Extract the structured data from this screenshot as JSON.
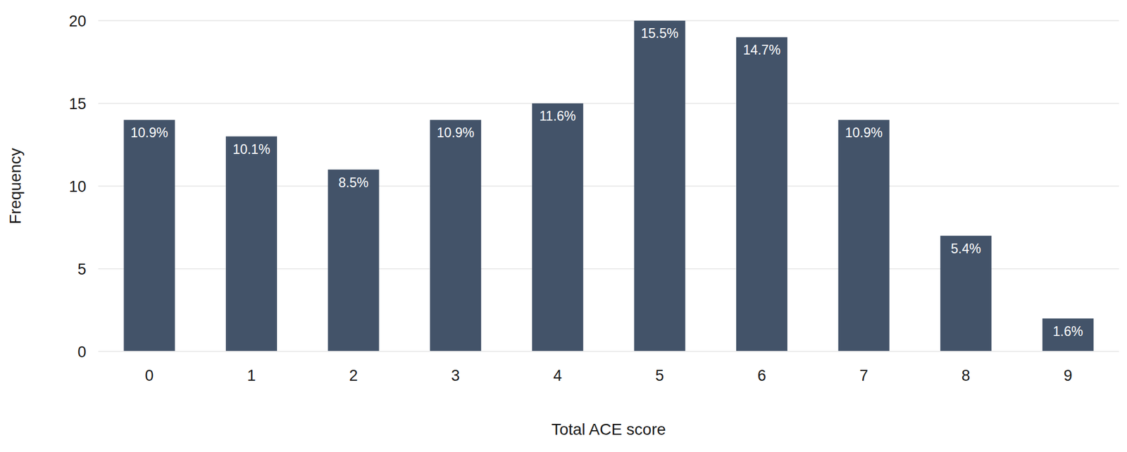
{
  "chart_data": {
    "type": "bar",
    "x_label": "Total ACE score",
    "y_label": "Frequency",
    "categories": [
      "0",
      "1",
      "2",
      "3",
      "4",
      "5",
      "6",
      "7",
      "8",
      "9"
    ],
    "values": [
      14,
      13,
      11,
      14,
      15,
      20,
      19,
      14,
      7,
      2
    ],
    "percent_labels": [
      "10.9%",
      "10.1%",
      "8.5%",
      "10.9%",
      "11.6%",
      "15.5%",
      "14.7%",
      "10.9%",
      "5.4%",
      "1.6%"
    ],
    "color": "#435369",
    "ylim": [
      0,
      20
    ],
    "yticks": [
      0,
      5,
      10,
      15,
      20
    ],
    "grid": true
  }
}
